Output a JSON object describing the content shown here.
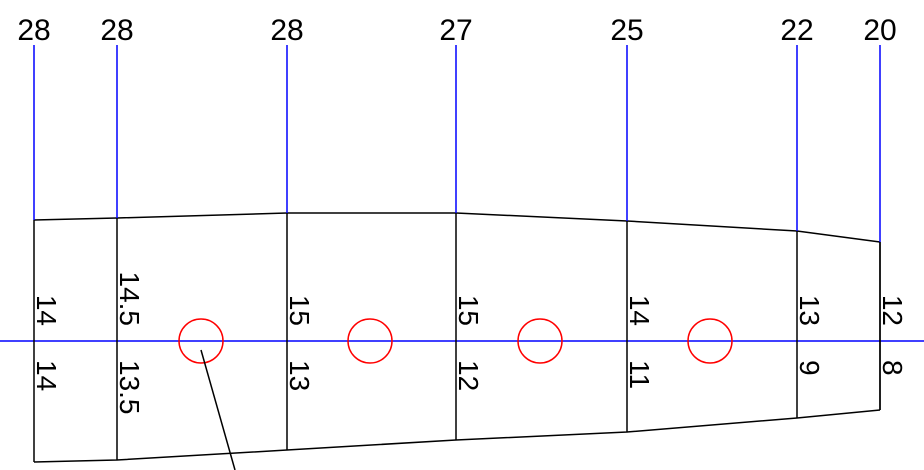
{
  "stations": [
    {
      "top": "28",
      "upper": "14",
      "lower": "14"
    },
    {
      "top": "28",
      "upper": "14.5",
      "lower": "13.5"
    },
    {
      "top": "28",
      "upper": "15",
      "lower": "13"
    },
    {
      "top": "27",
      "upper": "15",
      "lower": "12"
    },
    {
      "top": "25",
      "upper": "14",
      "lower": "11"
    },
    {
      "top": "22",
      "upper": "13",
      "lower": "9"
    },
    {
      "top": "20",
      "upper": "12",
      "lower": "8"
    }
  ]
}
